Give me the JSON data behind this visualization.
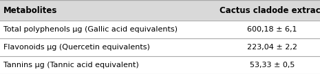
{
  "headers": [
    "Metabolites",
    "Cactus cladode extract"
  ],
  "rows": [
    [
      "Total polyphenols μg (Gallic acid equivalents)",
      "600,18 ± 6,1"
    ],
    [
      "Flavonoids μg (Quercetin equivalents)",
      "223,04 ± 2,2"
    ],
    [
      "Tannins μg (Tannic acid equivalent)",
      "53,33 ± 0,5"
    ]
  ],
  "bg_color": "#ffffff",
  "header_bg": "#d9d9d9",
  "line_color": "#aaaaaa",
  "text_color": "#000000",
  "header_fontsize": 8.5,
  "row_fontsize": 8.0,
  "col_split": 0.7
}
